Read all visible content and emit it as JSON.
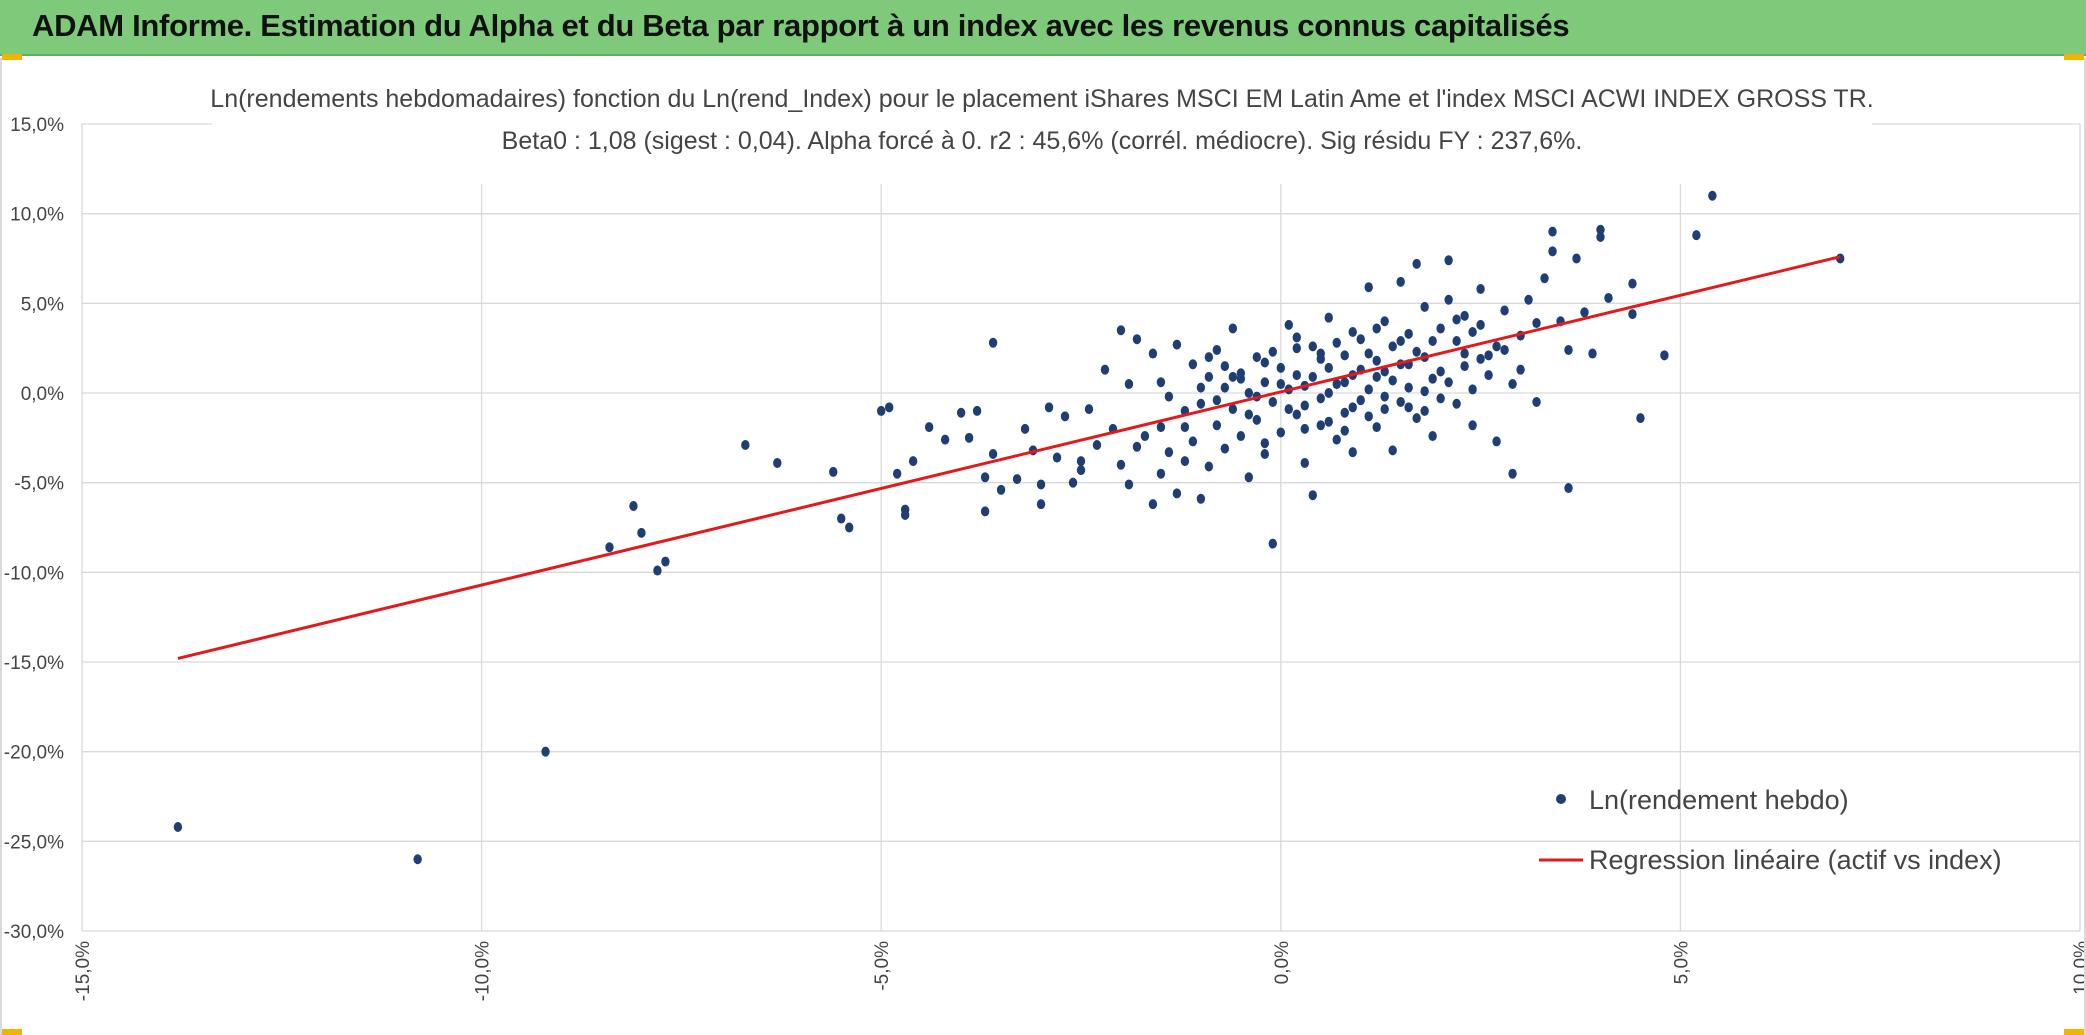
{
  "header": {
    "title": "ADAM Informe. Estimation du Alpha et du Beta par rapport à un index avec les revenus connus capitalisés"
  },
  "colors": {
    "header_bg": "#7ec97a",
    "points": "#1f3f73",
    "regression": "#e31a1c",
    "grid": "#d9d9d9"
  },
  "chart_data": {
    "type": "scatter",
    "title": "Ln(rendements hebdomadaires) fonction du Ln(rend_Index) pour le placement iShares MSCI EM Latin Ame et l'index MSCI ACWI INDEX GROSS TR.",
    "subtitle": "Beta0 : 1,08 (sigest : 0,04). Alpha forcé à 0. r2 : 45,6% (corrél. médiocre). Sig résidu FY : 237,6%.",
    "xlabel": "",
    "ylabel": "",
    "xlim": [
      -15,
      10
    ],
    "ylim": [
      -30,
      15
    ],
    "x_ticks": [
      "-15,0%",
      "-10,0%",
      "-5,0%",
      "0,0%",
      "5,0%",
      "10,0%"
    ],
    "y_ticks": [
      "15,0%",
      "10,0%",
      "5,0%",
      "0,0%",
      "-5,0%",
      "-10,0%",
      "-15,0%",
      "-20,0%",
      "-25,0%",
      "-30,0%"
    ],
    "grid": true,
    "legend_position": "bottom-right",
    "series": [
      {
        "name": "Ln(rendement hebdo)",
        "kind": "scatter",
        "points": [
          [
            -13.8,
            -24.2
          ],
          [
            -10.8,
            -26.0
          ],
          [
            -9.2,
            -20.0
          ],
          [
            -8.4,
            -8.6
          ],
          [
            -8.1,
            -6.3
          ],
          [
            -8.0,
            -7.8
          ],
          [
            -7.8,
            -9.9
          ],
          [
            -7.7,
            -9.4
          ],
          [
            -6.7,
            -2.9
          ],
          [
            -6.3,
            -3.9
          ],
          [
            -5.6,
            -4.4
          ],
          [
            -5.5,
            -7.0
          ],
          [
            -5.4,
            -7.5
          ],
          [
            -5.0,
            -1.0
          ],
          [
            -4.9,
            -0.8
          ],
          [
            -4.8,
            -4.5
          ],
          [
            -4.7,
            -6.5
          ],
          [
            -4.7,
            -6.8
          ],
          [
            -4.6,
            -3.8
          ],
          [
            -4.4,
            -1.9
          ],
          [
            -4.2,
            -2.6
          ],
          [
            -4.0,
            -1.1
          ],
          [
            -3.9,
            -2.5
          ],
          [
            -3.8,
            -1.0
          ],
          [
            -3.7,
            -4.7
          ],
          [
            -3.7,
            -6.6
          ],
          [
            -3.6,
            -3.4
          ],
          [
            -3.5,
            -5.4
          ],
          [
            -3.3,
            -4.8
          ],
          [
            -3.2,
            -2.0
          ],
          [
            -3.1,
            -3.2
          ],
          [
            -3.0,
            -6.2
          ],
          [
            -3.0,
            -5.1
          ],
          [
            -3.6,
            2.8
          ],
          [
            -2.9,
            -0.8
          ],
          [
            -2.8,
            -3.6
          ],
          [
            -2.7,
            -1.3
          ],
          [
            -2.6,
            -5.0
          ],
          [
            -2.5,
            -4.3
          ],
          [
            -2.5,
            -3.8
          ],
          [
            -2.4,
            -0.9
          ],
          [
            -2.3,
            -2.9
          ],
          [
            -2.2,
            1.3
          ],
          [
            -2.1,
            -2.0
          ],
          [
            -2.0,
            -4.0
          ],
          [
            -2.0,
            3.5
          ],
          [
            -1.9,
            0.5
          ],
          [
            -1.9,
            -5.1
          ],
          [
            -1.8,
            -3.0
          ],
          [
            -1.8,
            3.0
          ],
          [
            -1.7,
            -2.4
          ],
          [
            -1.6,
            -6.2
          ],
          [
            -1.6,
            2.2
          ],
          [
            -1.5,
            -1.9
          ],
          [
            -1.5,
            -4.5
          ],
          [
            -1.4,
            -0.2
          ],
          [
            -1.4,
            -3.3
          ],
          [
            -1.3,
            2.7
          ],
          [
            -1.3,
            -5.6
          ],
          [
            -1.2,
            -1.0
          ],
          [
            -1.2,
            -3.8
          ],
          [
            -1.1,
            1.6
          ],
          [
            -1.1,
            -2.7
          ],
          [
            -1.0,
            -0.6
          ],
          [
            -1.0,
            -5.9
          ],
          [
            -0.9,
            0.9
          ],
          [
            -0.9,
            -4.1
          ],
          [
            -0.8,
            2.4
          ],
          [
            -0.8,
            -1.8
          ],
          [
            -0.7,
            -3.1
          ],
          [
            -0.7,
            0.3
          ],
          [
            -0.6,
            -0.9
          ],
          [
            -0.6,
            3.6
          ],
          [
            -0.5,
            -2.4
          ],
          [
            -0.5,
            1.1
          ],
          [
            -0.4,
            -4.7
          ],
          [
            -0.4,
            0.0
          ],
          [
            -0.3,
            2.0
          ],
          [
            -0.3,
            -1.5
          ],
          [
            -0.2,
            -3.4
          ],
          [
            -0.2,
            0.6
          ],
          [
            -0.1,
            -0.5
          ],
          [
            -0.1,
            -8.4
          ],
          [
            0.0,
            1.4
          ],
          [
            0.0,
            -2.2
          ],
          [
            0.1,
            0.2
          ],
          [
            0.1,
            3.8
          ],
          [
            0.2,
            -1.2
          ],
          [
            0.2,
            2.5
          ],
          [
            0.3,
            -0.7
          ],
          [
            0.3,
            -3.9
          ],
          [
            0.4,
            0.9
          ],
          [
            0.4,
            -5.7
          ],
          [
            0.5,
            1.9
          ],
          [
            0.5,
            -1.8
          ],
          [
            0.6,
            4.2
          ],
          [
            0.6,
            0.0
          ],
          [
            0.7,
            -2.6
          ],
          [
            0.7,
            2.8
          ],
          [
            0.8,
            0.6
          ],
          [
            0.8,
            -1.1
          ],
          [
            0.9,
            3.4
          ],
          [
            0.9,
            -3.3
          ],
          [
            1.0,
            1.3
          ],
          [
            1.0,
            -0.4
          ],
          [
            1.1,
            5.9
          ],
          [
            1.1,
            2.2
          ],
          [
            1.2,
            -1.9
          ],
          [
            1.2,
            0.9
          ],
          [
            1.3,
            4.0
          ],
          [
            1.3,
            -0.9
          ],
          [
            1.4,
            2.6
          ],
          [
            1.4,
            -3.2
          ],
          [
            1.5,
            1.6
          ],
          [
            1.5,
            6.2
          ],
          [
            1.6,
            0.3
          ],
          [
            1.6,
            3.3
          ],
          [
            1.7,
            -1.4
          ],
          [
            1.7,
            7.2
          ],
          [
            1.8,
            2.0
          ],
          [
            1.8,
            4.8
          ],
          [
            1.9,
            0.8
          ],
          [
            1.9,
            -2.4
          ],
          [
            2.0,
            3.6
          ],
          [
            2.0,
            1.2
          ],
          [
            2.1,
            7.4
          ],
          [
            2.1,
            5.2
          ],
          [
            2.2,
            -0.6
          ],
          [
            2.2,
            2.9
          ],
          [
            2.3,
            4.3
          ],
          [
            2.3,
            1.5
          ],
          [
            2.4,
            0.2
          ],
          [
            2.4,
            -1.8
          ],
          [
            2.5,
            3.8
          ],
          [
            2.5,
            5.8
          ],
          [
            2.6,
            1.0
          ],
          [
            2.7,
            2.6
          ],
          [
            2.7,
            -2.7
          ],
          [
            2.8,
            4.6
          ],
          [
            2.9,
            -4.5
          ],
          [
            2.9,
            0.5
          ],
          [
            3.0,
            3.2
          ],
          [
            3.1,
            5.2
          ],
          [
            3.2,
            -0.5
          ],
          [
            3.3,
            6.4
          ],
          [
            3.4,
            9.0
          ],
          [
            3.4,
            7.9
          ],
          [
            3.5,
            4.0
          ],
          [
            3.6,
            -5.3
          ],
          [
            3.6,
            2.4
          ],
          [
            3.7,
            7.5
          ],
          [
            3.8,
            4.5
          ],
          [
            3.9,
            2.2
          ],
          [
            4.0,
            9.1
          ],
          [
            4.0,
            8.7
          ],
          [
            4.1,
            5.3
          ],
          [
            4.4,
            4.4
          ],
          [
            4.4,
            6.1
          ],
          [
            4.5,
            -1.4
          ],
          [
            4.8,
            2.1
          ],
          [
            5.2,
            8.8
          ],
          [
            5.4,
            11.0
          ],
          [
            7.0,
            7.5
          ],
          [
            -0.5,
            0.8
          ],
          [
            -0.3,
            -0.2
          ],
          [
            0.0,
            0.5
          ],
          [
            0.2,
            1.0
          ],
          [
            0.3,
            0.4
          ],
          [
            0.5,
            -0.3
          ],
          [
            0.6,
            1.4
          ],
          [
            0.8,
            2.1
          ],
          [
            0.9,
            -0.8
          ],
          [
            1.1,
            0.2
          ],
          [
            1.2,
            1.8
          ],
          [
            1.4,
            0.7
          ],
          [
            1.5,
            -0.5
          ],
          [
            1.7,
            2.3
          ],
          [
            1.8,
            0.1
          ],
          [
            -0.8,
            -0.4
          ],
          [
            -0.6,
            0.9
          ],
          [
            -0.4,
            -1.2
          ],
          [
            -0.2,
            1.7
          ],
          [
            0.1,
            -0.9
          ],
          [
            0.4,
            2.6
          ],
          [
            0.6,
            -1.6
          ],
          [
            0.9,
            1.0
          ],
          [
            1.1,
            -1.3
          ],
          [
            1.3,
            1.2
          ],
          [
            1.6,
            1.6
          ],
          [
            1.9,
            2.9
          ],
          [
            2.1,
            0.6
          ],
          [
            2.3,
            2.2
          ],
          [
            2.6,
            2.1
          ],
          [
            -1.0,
            0.3
          ],
          [
            -0.7,
            1.5
          ],
          [
            -0.1,
            2.3
          ],
          [
            0.3,
            -2.0
          ],
          [
            0.7,
            0.5
          ],
          [
            1.0,
            3.0
          ],
          [
            1.3,
            -0.2
          ],
          [
            1.6,
            -0.8
          ],
          [
            2.0,
            -0.3
          ],
          [
            2.4,
            3.4
          ],
          [
            -1.5,
            0.6
          ],
          [
            -1.2,
            -1.9
          ],
          [
            -0.9,
            2.0
          ],
          [
            -0.2,
            -2.8
          ],
          [
            0.2,
            3.1
          ],
          [
            0.5,
            2.2
          ],
          [
            0.8,
            -2.1
          ],
          [
            1.2,
            3.6
          ],
          [
            1.5,
            2.9
          ],
          [
            1.8,
            -1.0
          ],
          [
            2.2,
            4.1
          ],
          [
            2.5,
            1.9
          ],
          [
            2.8,
            2.4
          ],
          [
            3.0,
            1.3
          ],
          [
            3.2,
            3.9
          ]
        ]
      },
      {
        "name": "Regression linéaire (actif vs index)",
        "kind": "line",
        "points": [
          [
            -13.8,
            -14.8
          ],
          [
            7.0,
            7.6
          ]
        ]
      }
    ]
  }
}
